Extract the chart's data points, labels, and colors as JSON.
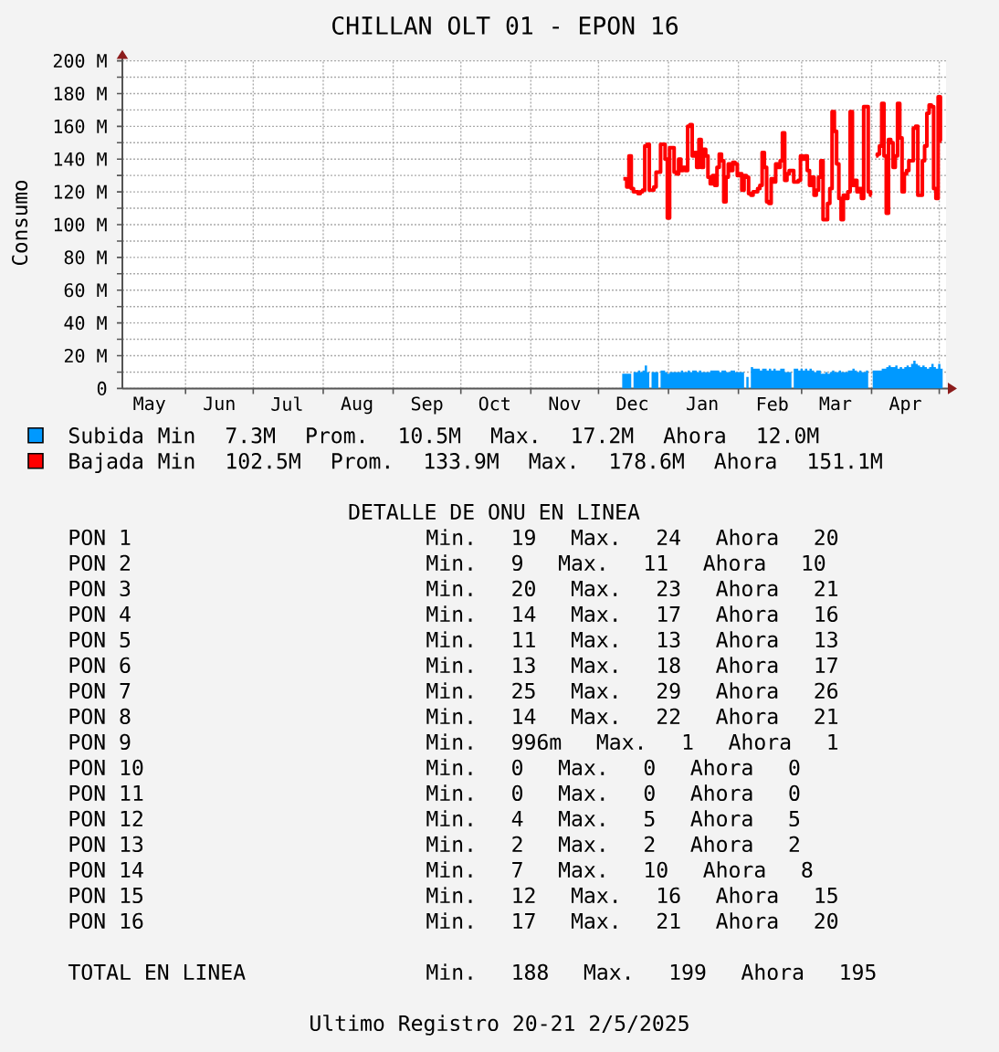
{
  "chart_data": {
    "type": "step",
    "title": "CHILLAN OLT 01 - EPON 16",
    "ylabel": "Consumo",
    "x": [
      "2024-12-12",
      "2024-12-13",
      "2024-12-14",
      "2024-12-15",
      "2024-12-16",
      "2024-12-17",
      "2024-12-18",
      "2024-12-19",
      "2024-12-20",
      "2024-12-21",
      "2024-12-22",
      "2024-12-23",
      "2024-12-24",
      "2024-12-25",
      "2024-12-26",
      "2024-12-27",
      "2024-12-28",
      "2024-12-29",
      "2024-12-30",
      "2024-12-31",
      "2025-01-01",
      "2025-01-02",
      "2025-01-03",
      "2025-01-04",
      "2025-01-05",
      "2025-01-06",
      "2025-01-07",
      "2025-01-08",
      "2025-01-09",
      "2025-01-10",
      "2025-01-11",
      "2025-01-12",
      "2025-01-13",
      "2025-01-14",
      "2025-01-15",
      "2025-01-16",
      "2025-01-17",
      "2025-01-18",
      "2025-01-19",
      "2025-01-20",
      "2025-01-21",
      "2025-01-22",
      "2025-01-23",
      "2025-01-24",
      "2025-01-25",
      "2025-01-26",
      "2025-01-27",
      "2025-01-28",
      "2025-01-29",
      "2025-01-30",
      "2025-01-31",
      "2025-02-01",
      "2025-02-02",
      "2025-02-03",
      "2025-02-04",
      "2025-02-05",
      "2025-02-06",
      "2025-02-07",
      "2025-02-08",
      "2025-02-09",
      "2025-02-10",
      "2025-02-11",
      "2025-02-12",
      "2025-02-13",
      "2025-02-14",
      "2025-02-15",
      "2025-02-16",
      "2025-02-17",
      "2025-02-18",
      "2025-02-19",
      "2025-02-20",
      "2025-02-21",
      "2025-02-22",
      "2025-02-23",
      "2025-02-24",
      "2025-02-25",
      "2025-02-26",
      "2025-02-27",
      "2025-02-28",
      "2025-03-01",
      "2025-03-02",
      "2025-03-03",
      "2025-03-04",
      "2025-03-05",
      "2025-03-06",
      "2025-03-07",
      "2025-03-08",
      "2025-03-09",
      "2025-03-10",
      "2025-03-11",
      "2025-03-12",
      "2025-03-13",
      "2025-03-14",
      "2025-03-15",
      "2025-03-16",
      "2025-03-17",
      "2025-03-18",
      "2025-03-19",
      "2025-03-20",
      "2025-03-21",
      "2025-03-22",
      "2025-03-23",
      "2025-03-24",
      "2025-03-25",
      "2025-03-26",
      "2025-03-27",
      "2025-03-28",
      "2025-03-29",
      "2025-03-30",
      "2025-03-31",
      "2025-04-01",
      "2025-04-02",
      "2025-04-03",
      "2025-04-04",
      "2025-04-05",
      "2025-04-06",
      "2025-04-07",
      "2025-04-08",
      "2025-04-09",
      "2025-04-10",
      "2025-04-11",
      "2025-04-12",
      "2025-04-13",
      "2025-04-14",
      "2025-04-15",
      "2025-04-16",
      "2025-04-17",
      "2025-04-18",
      "2025-04-19",
      "2025-04-20",
      "2025-04-21",
      "2025-04-22",
      "2025-04-23",
      "2025-04-24",
      "2025-04-25",
      "2025-04-26",
      "2025-04-27",
      "2025-04-28",
      "2025-04-29",
      "2025-04-30",
      "2025-05-01",
      "2025-05-02"
    ],
    "series": [
      {
        "name": "Subida",
        "type": "area",
        "color": "#0099ff",
        "values": [
          9,
          9,
          9,
          9,
          null,
          10,
          10,
          11,
          10,
          11,
          14,
          10,
          null,
          10,
          10,
          10,
          null,
          11,
          11,
          10,
          9,
          10,
          10,
          10,
          10,
          10,
          11,
          10,
          10,
          11,
          10,
          11,
          11,
          10,
          11,
          10,
          10,
          10,
          10,
          11,
          11,
          11,
          11,
          10,
          11,
          11,
          10,
          10,
          11,
          11,
          10,
          10,
          10,
          10,
          null,
          7,
          null,
          13,
          12,
          12,
          12,
          11,
          12,
          12,
          11,
          12,
          11,
          12,
          11,
          11,
          12,
          12,
          10,
          10,
          10,
          null,
          12,
          12,
          11,
          12,
          11,
          12,
          11,
          12,
          11,
          10,
          11,
          11,
          9,
          9,
          10,
          9,
          10,
          11,
          10,
          10,
          11,
          10,
          10,
          10,
          11,
          11,
          12,
          11,
          10,
          11,
          10,
          10,
          11,
          null,
          null,
          11,
          11,
          11,
          11,
          12,
          12,
          13,
          14,
          13,
          13,
          14,
          12,
          13,
          12,
          13,
          14,
          13,
          15,
          17,
          15,
          14,
          13,
          14,
          13,
          12,
          13,
          15,
          13,
          12,
          15,
          12
        ]
      },
      {
        "name": "Bajada",
        "color": "#ff0000",
        "values": [
          128,
          128,
          123,
          142,
          122,
          120,
          120,
          119,
          120,
          121,
          148,
          149,
          121,
          121,
          123,
          132,
          132,
          149,
          149,
          140,
          104,
          147,
          147,
          132,
          131,
          140,
          133,
          135,
          133,
          160,
          161,
          142,
          144,
          135,
          152,
          135,
          146,
          142,
          129,
          125,
          130,
          124,
          135,
          143,
          139,
          114,
          129,
          137,
          133,
          138,
          137,
          130,
          131,
          121,
          130,
          129,
          119,
          118,
          120,
          120,
          122,
          124,
          144,
          135,
          114,
          113,
          128,
          126,
          137,
          135,
          139,
          156,
          127,
          131,
          133,
          133,
          126,
          126,
          127,
          142,
          140,
          142,
          133,
          124,
          129,
          118,
          121,
          129,
          139,
          103,
          103,
          113,
          122,
          169,
          157,
          137,
          116,
          103,
          118,
          116,
          120,
          169,
          124,
          127,
          120,
          122,
          116,
          172,
          172,
          120,
          118,
          null,
          142,
          143,
          148,
          174,
          142,
          107,
          152,
          150,
          135,
          142,
          174,
          153,
          120,
          131,
          133,
          139,
          139,
          159,
          160,
          118,
          118,
          139,
          148,
          168,
          173,
          172,
          122,
          116,
          178,
          151
        ]
      }
    ],
    "xlim": [
      "2024-05-04",
      "2025-05-04"
    ],
    "xticks": [
      {
        "value": "2024-05-16",
        "label": "May"
      },
      {
        "value": "2024-06-01",
        "label": null
      },
      {
        "value": "2024-06-16",
        "label": "Jun"
      },
      {
        "value": "2024-07-01",
        "label": null
      },
      {
        "value": "2024-07-16",
        "label": "Jul"
      },
      {
        "value": "2024-08-01",
        "label": null
      },
      {
        "value": "2024-08-16",
        "label": "Aug"
      },
      {
        "value": "2024-09-01",
        "label": null
      },
      {
        "value": "2024-09-16",
        "label": "Sep"
      },
      {
        "value": "2024-10-01",
        "label": null
      },
      {
        "value": "2024-10-16",
        "label": "Oct"
      },
      {
        "value": "2024-11-01",
        "label": null
      },
      {
        "value": "2024-11-16",
        "label": "Nov"
      },
      {
        "value": "2024-12-01",
        "label": null
      },
      {
        "value": "2024-12-16",
        "label": "Dec"
      },
      {
        "value": "2025-01-01",
        "label": null
      },
      {
        "value": "2025-01-16",
        "label": "Jan"
      },
      {
        "value": "2025-02-01",
        "label": null
      },
      {
        "value": "2025-02-16",
        "label": "Feb"
      },
      {
        "value": "2025-03-01",
        "label": null
      },
      {
        "value": "2025-03-16",
        "label": "Mar"
      },
      {
        "value": "2025-04-01",
        "label": null
      },
      {
        "value": "2025-04-16",
        "label": "Apr"
      },
      {
        "value": "2025-05-01",
        "label": null
      }
    ],
    "ylim": [
      0,
      200
    ],
    "yticks": [
      0,
      {
        "value": 10,
        "label": null
      },
      {
        "value": 20,
        "label": "20 M"
      },
      {
        "value": 30,
        "label": null
      },
      {
        "value": 40,
        "label": "40 M"
      },
      {
        "value": 50,
        "label": null
      },
      {
        "value": 60,
        "label": "60 M"
      },
      {
        "value": 70,
        "label": null
      },
      {
        "value": 80,
        "label": "80 M"
      },
      {
        "value": 90,
        "label": null
      },
      {
        "value": 100,
        "label": "100 M"
      },
      {
        "value": 110,
        "label": null
      },
      {
        "value": 120,
        "label": "120 M"
      },
      {
        "value": 130,
        "label": null
      },
      {
        "value": 140,
        "label": "140 M"
      },
      {
        "value": 150,
        "label": null
      },
      {
        "value": 160,
        "label": "160 M"
      },
      {
        "value": 170,
        "label": null
      },
      {
        "value": 180,
        "label": "180 M"
      },
      {
        "value": 190,
        "label": null
      },
      {
        "value": 200,
        "label": "200 M"
      }
    ],
    "grid": true,
    "legend": "bottom",
    "annotations": [
      "Min 7.3M Prom. 10.5M Max. 17.2M Ahora 12.0M",
      "Min 102.5M Prom. 133.9M Max. 178.6M Ahora 151.1M",
      "DETALLE DE ONU EN LINEA",
      "PON 1",
      "Min. 19 Max. 24 Ahora 20",
      "PON 2",
      "Min. 9 Max. 11 Ahora 10",
      "PON 3",
      "Min. 20 Max. 23 Ahora 21",
      "PON 4",
      "Min. 14 Max. 17 Ahora 16",
      "PON 5",
      "Min. 11 Max. 13 Ahora 13",
      "PON 6",
      "Min. 13 Max. 18 Ahora 17",
      "PON 7",
      "Min. 25 Max. 29 Ahora 26",
      "PON 8",
      "Min. 14 Max. 22 Ahora 21",
      "PON 9",
      "Min. 996m Max. 1 Ahora 1",
      "PON 10",
      "Min. 0 Max. 0 Ahora 0",
      "PON 11",
      "Min. 0 Max. 0 Ahora 0",
      "PON 12",
      "Min. 4 Max. 5 Ahora 5",
      "PON 13",
      "Min. 2 Max. 2 Ahora 2",
      "PON 14",
      "Min. 7 Max. 10 Ahora 8",
      "PON 15",
      "Min. 12 Max. 16 Ahora 15",
      "PON 16",
      "Min. 17 Max. 21 Ahora 20",
      "TOTAL EN LINEA",
      "Min. 188 Max. 199 Ahora 195",
      "Ultimo Registro 20-21 2/5/2025"
    ]
  }
}
